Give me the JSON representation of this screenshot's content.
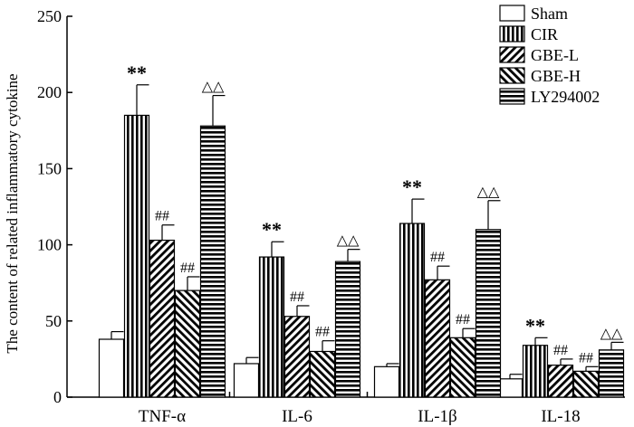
{
  "chart_data": {
    "type": "bar",
    "title": "",
    "xlabel": "",
    "ylabel": "The content of related inflammatory cytokine",
    "ylim": [
      0,
      250
    ],
    "yticks": [
      0,
      50,
      100,
      150,
      200,
      250
    ],
    "categories": [
      "TNF-α",
      "IL-6",
      "IL-1β",
      "IL-18"
    ],
    "legend_position": "top-right",
    "series": [
      {
        "name": "Sham",
        "pattern": "none",
        "values": [
          38,
          22,
          20,
          12
        ],
        "errors": [
          5,
          4,
          2,
          3
        ],
        "annotations": [
          "",
          "",
          "",
          ""
        ]
      },
      {
        "name": "CIR",
        "pattern": "vertical",
        "values": [
          185,
          92,
          114,
          34
        ],
        "errors": [
          20,
          10,
          16,
          5
        ],
        "annotations": [
          "**",
          "**",
          "**",
          "**"
        ]
      },
      {
        "name": "GBE-L",
        "pattern": "diagonal-up",
        "values": [
          103,
          53,
          77,
          21
        ],
        "errors": [
          10,
          7,
          9,
          4
        ],
        "annotations": [
          "##",
          "##",
          "##",
          "##"
        ]
      },
      {
        "name": "GBE-H",
        "pattern": "diagonal-down",
        "values": [
          70,
          30,
          39,
          17
        ],
        "errors": [
          9,
          7,
          6,
          3
        ],
        "annotations": [
          "##",
          "##",
          "##",
          "##"
        ]
      },
      {
        "name": "LY294002",
        "pattern": "horizontal",
        "values": [
          178,
          89,
          110,
          31
        ],
        "errors": [
          20,
          8,
          19,
          5
        ],
        "annotations": [
          "△△",
          "△△",
          "△△",
          "△△"
        ]
      }
    ]
  }
}
